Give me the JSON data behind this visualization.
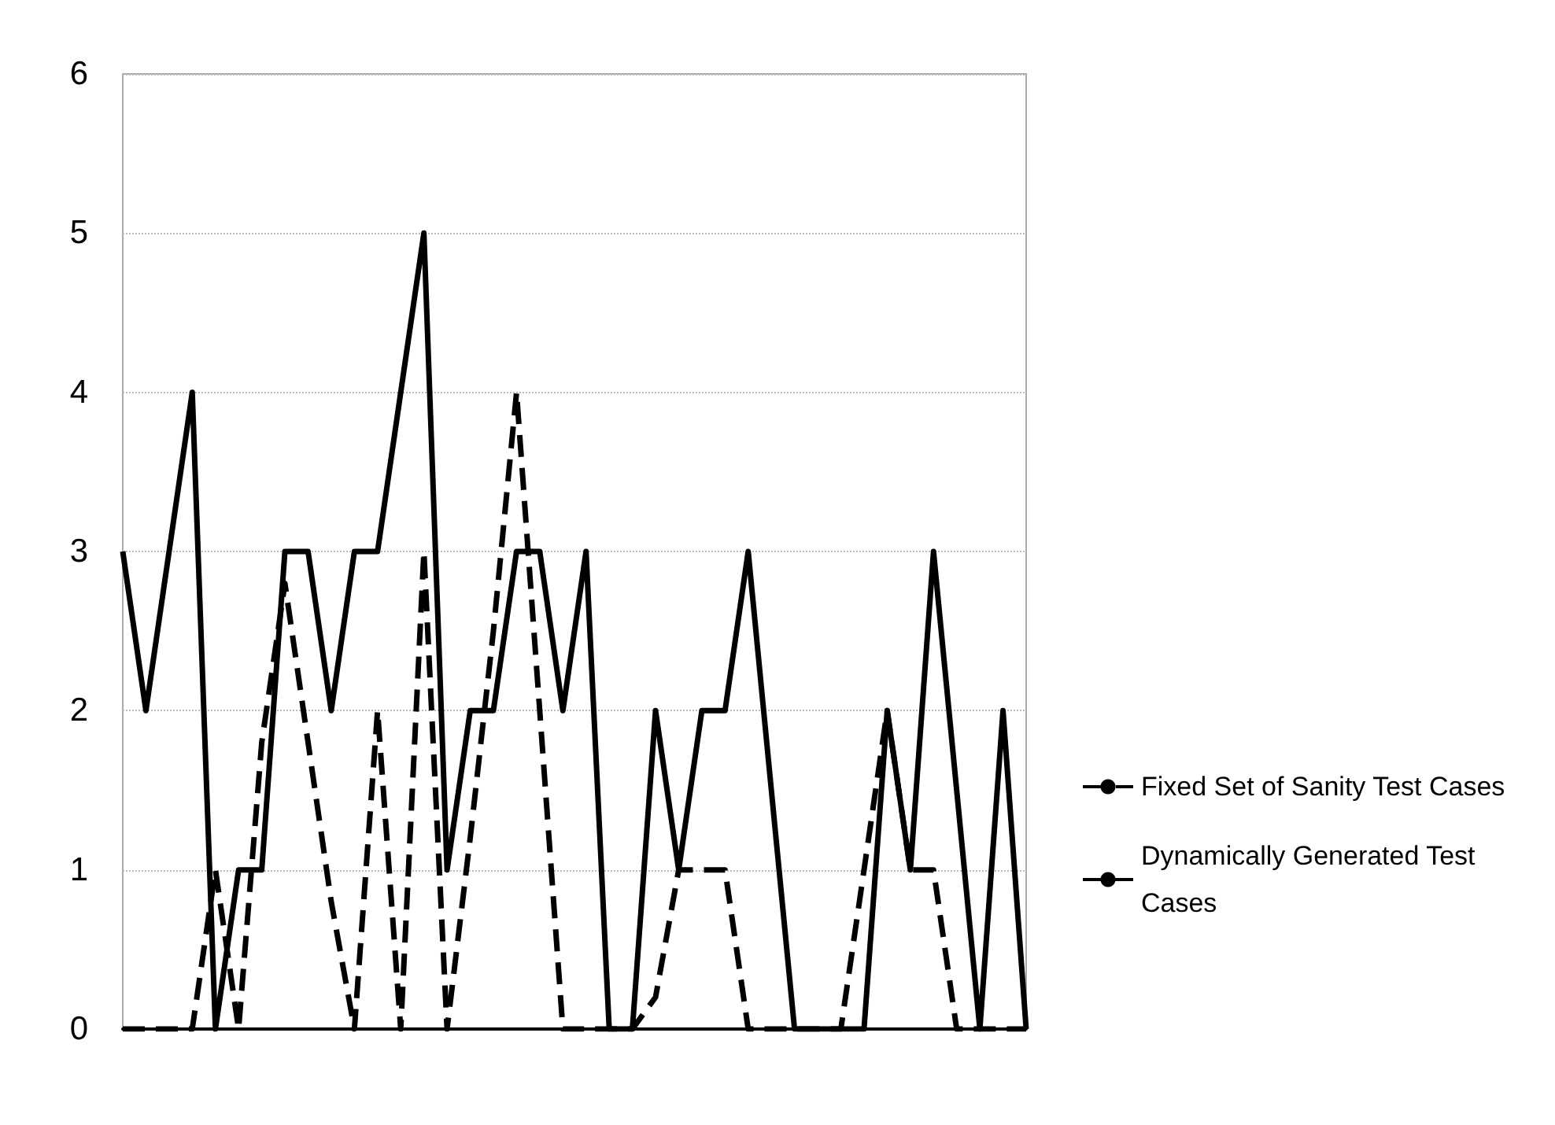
{
  "chart_data": {
    "type": "line",
    "categories": [
      null,
      null,
      null,
      null,
      null,
      null,
      null,
      null,
      null,
      null,
      null,
      null,
      null,
      null,
      null,
      null,
      null,
      null,
      null,
      null,
      null,
      null,
      null,
      null,
      null,
      null,
      null,
      null,
      null,
      null,
      null,
      null,
      null,
      null,
      null,
      null,
      null,
      null,
      null,
      null
    ],
    "series": [
      {
        "name": "Fixed Set of Sanity Test Cases",
        "color": "#000000",
        "line_style": "dashed",
        "values": [
          0,
          0,
          0,
          0,
          1,
          0,
          1.8,
          2.8,
          1.8,
          0.8,
          0,
          2,
          0,
          3,
          0,
          1.2,
          2.5,
          4,
          2,
          0,
          0,
          0,
          0,
          0.2,
          1,
          1,
          1,
          0,
          0,
          0,
          0,
          0,
          1,
          2,
          1,
          1,
          0,
          0,
          0,
          0
        ]
      },
      {
        "name": "Dynamically Generated Test Cases",
        "color": "#000000",
        "line_style": "solid",
        "values": [
          3,
          2,
          3,
          4,
          0,
          1,
          1,
          3,
          3,
          2,
          3,
          3,
          4,
          5,
          1,
          2,
          2,
          3,
          3,
          2,
          3,
          0,
          0,
          2,
          1,
          2,
          2,
          3,
          1.5,
          0,
          0,
          0,
          0,
          2,
          1,
          3,
          1.5,
          0,
          2,
          0
        ]
      }
    ],
    "ylim": [
      0,
      6
    ],
    "yticks": [
      0,
      1,
      2,
      3,
      4,
      5,
      6
    ],
    "grid": "y",
    "legend": "right",
    "tick_labels": "y",
    "marker": "none"
  }
}
